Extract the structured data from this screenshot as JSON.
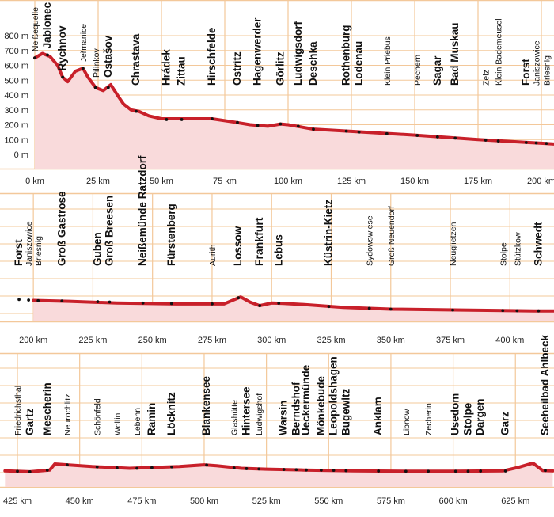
{
  "chart_data": {
    "type": "area",
    "title": "",
    "xlabel": "",
    "ylabel": "",
    "x_unit": "km",
    "y_unit": "m",
    "ylim": [
      0,
      800
    ],
    "grid": true,
    "colors": {
      "line": "#c8202a",
      "fill": "#f9dadb",
      "grid": "#f3c89a",
      "text": "#111111"
    },
    "y_ticks": [
      "0 m",
      "100 m",
      "200 m",
      "300 m",
      "400 m",
      "500 m",
      "600 m",
      "700 m",
      "800 m"
    ],
    "panels": [
      {
        "x_range": [
          0,
          205
        ],
        "x_ticks": [
          "0 km",
          "25 km",
          "50 km",
          "75 km",
          "100 km",
          "125 km",
          "150 km",
          "175 km",
          "200 km"
        ],
        "show_y_axis": true,
        "profile": [
          [
            0,
            650
          ],
          [
            3,
            680
          ],
          [
            6,
            660
          ],
          [
            9,
            600
          ],
          [
            11,
            520
          ],
          [
            13,
            490
          ],
          [
            16,
            560
          ],
          [
            19,
            580
          ],
          [
            21,
            520
          ],
          [
            24,
            450
          ],
          [
            27,
            430
          ],
          [
            30,
            470
          ],
          [
            33,
            390
          ],
          [
            35,
            340
          ],
          [
            38,
            300
          ],
          [
            41,
            290
          ],
          [
            45,
            260
          ],
          [
            50,
            240
          ],
          [
            60,
            240
          ],
          [
            70,
            240
          ],
          [
            78,
            220
          ],
          [
            85,
            200
          ],
          [
            92,
            190
          ],
          [
            97,
            205
          ],
          [
            100,
            200
          ],
          [
            110,
            170
          ],
          [
            125,
            155
          ],
          [
            150,
            130
          ],
          [
            175,
            100
          ],
          [
            200,
            75
          ],
          [
            205,
            70
          ]
        ]
      },
      {
        "x_range": [
          200,
          420
        ],
        "x_ticks": [
          "200 km",
          "225 km",
          "250 km",
          "275 km",
          "300 km",
          "325 km",
          "350 km",
          "375 km",
          "400 km"
        ],
        "show_y_axis": false,
        "profile": [
          [
            200,
            75
          ],
          [
            215,
            70
          ],
          [
            235,
            60
          ],
          [
            260,
            55
          ],
          [
            280,
            55
          ],
          [
            287,
            95
          ],
          [
            291,
            65
          ],
          [
            295,
            45
          ],
          [
            300,
            60
          ],
          [
            305,
            58
          ],
          [
            315,
            50
          ],
          [
            330,
            35
          ],
          [
            350,
            25
          ],
          [
            380,
            20
          ],
          [
            410,
            15
          ],
          [
            420,
            15
          ]
        ]
      },
      {
        "x_range": [
          420,
          640
        ],
        "x_ticks": [
          "425 km",
          "450 km",
          "475 km",
          "500 km",
          "525 km",
          "550 km",
          "575 km",
          "600 km",
          "625 km"
        ],
        "show_y_axis": false,
        "profile": [
          [
            420,
            10
          ],
          [
            430,
            5
          ],
          [
            438,
            15
          ],
          [
            440,
            50
          ],
          [
            445,
            45
          ],
          [
            455,
            35
          ],
          [
            470,
            25
          ],
          [
            480,
            30
          ],
          [
            490,
            35
          ],
          [
            500,
            45
          ],
          [
            505,
            40
          ],
          [
            515,
            25
          ],
          [
            525,
            20
          ],
          [
            540,
            15
          ],
          [
            560,
            10
          ],
          [
            580,
            8
          ],
          [
            600,
            8
          ],
          [
            620,
            10
          ],
          [
            626,
            30
          ],
          [
            632,
            55
          ],
          [
            636,
            12
          ],
          [
            640,
            10
          ]
        ]
      }
    ],
    "places": [
      {
        "name": "Neißequelle",
        "km": 0,
        "alt": 650,
        "style": "small",
        "panel": 0
      },
      {
        "name": "Jablonec",
        "km": 5,
        "alt": 670,
        "style": "bold",
        "panel": 0
      },
      {
        "name": "Rychnov",
        "km": 11,
        "alt": 520,
        "style": "bold",
        "panel": 0
      },
      {
        "name": "Jeřmanice",
        "km": 19,
        "alt": 580,
        "style": "small",
        "panel": 0
      },
      {
        "name": "Pilínkov",
        "km": 24,
        "alt": 450,
        "style": "small",
        "panel": 0
      },
      {
        "name": "Ostašov",
        "km": 29,
        "alt": 450,
        "style": "bold",
        "panel": 0
      },
      {
        "name": "Chrastava",
        "km": 40,
        "alt": 290,
        "style": "bold",
        "panel": 0
      },
      {
        "name": "Hrádek",
        "km": 52,
        "alt": 235,
        "style": "bold",
        "panel": 0
      },
      {
        "name": "Zittau",
        "km": 58,
        "alt": 235,
        "style": "bold",
        "panel": 0
      },
      {
        "name": "Hirschfelde",
        "km": 70,
        "alt": 240,
        "style": "bold",
        "panel": 0
      },
      {
        "name": "Ostritz",
        "km": 80,
        "alt": 215,
        "style": "bold",
        "panel": 0
      },
      {
        "name": "Hagenwerder",
        "km": 88,
        "alt": 195,
        "style": "bold",
        "panel": 0
      },
      {
        "name": "Görlitz",
        "km": 97,
        "alt": 205,
        "style": "bold",
        "panel": 0
      },
      {
        "name": "Ludwigsdorf",
        "km": 104,
        "alt": 190,
        "style": "bold",
        "panel": 0
      },
      {
        "name": "Deschka",
        "km": 110,
        "alt": 170,
        "style": "bold",
        "panel": 0
      },
      {
        "name": "Rothenburg",
        "km": 123,
        "alt": 157,
        "style": "bold",
        "panel": 0
      },
      {
        "name": "Lodenau",
        "km": 128,
        "alt": 150,
        "style": "bold",
        "panel": 0
      },
      {
        "name": "Klein Priebus",
        "km": 139,
        "alt": 140,
        "style": "small",
        "panel": 0
      },
      {
        "name": "Pechern",
        "km": 151,
        "alt": 128,
        "style": "small",
        "panel": 0
      },
      {
        "name": "Sagar",
        "km": 159,
        "alt": 118,
        "style": "bold",
        "panel": 0
      },
      {
        "name": "Bad Muskau",
        "km": 166,
        "alt": 110,
        "style": "bold",
        "panel": 0
      },
      {
        "name": "Zelz",
        "km": 178,
        "alt": 96,
        "style": "small",
        "panel": 0
      },
      {
        "name": "Klein Bademeusel",
        "km": 183,
        "alt": 90,
        "style": "small",
        "panel": 0
      },
      {
        "name": "Forst",
        "km": 194,
        "alt": 80,
        "style": "bold",
        "panel": 0
      },
      {
        "name": "Janiszowice",
        "km": 198,
        "alt": 77,
        "style": "small",
        "panel": 0
      },
      {
        "name": "Briesnig",
        "km": 202,
        "alt": 74,
        "style": "small",
        "panel": 0
      },
      {
        "name": "Forst",
        "km": 194,
        "alt": 80,
        "style": "bold",
        "panel": 1
      },
      {
        "name": "Janiszowice",
        "km": 198,
        "alt": 77,
        "style": "small",
        "panel": 1
      },
      {
        "name": "Briesnig",
        "km": 202,
        "alt": 74,
        "style": "small",
        "panel": 1
      },
      {
        "name": "Groß Gastrose",
        "km": 212,
        "alt": 72,
        "style": "bold",
        "panel": 1
      },
      {
        "name": "Guben",
        "km": 227,
        "alt": 68,
        "style": "bold",
        "panel": 1
      },
      {
        "name": "Groß Breesen",
        "km": 232,
        "alt": 66,
        "style": "bold",
        "panel": 1
      },
      {
        "name": "Neißemünde Ratzdorf",
        "km": 246,
        "alt": 60,
        "style": "bold",
        "panel": 1
      },
      {
        "name": "Fürstenberg",
        "km": 258,
        "alt": 57,
        "style": "bold",
        "panel": 1
      },
      {
        "name": "Aurith",
        "km": 275,
        "alt": 55,
        "style": "small",
        "panel": 1
      },
      {
        "name": "Lossow",
        "km": 286,
        "alt": 90,
        "style": "bold",
        "panel": 1
      },
      {
        "name": "Frankfurt",
        "km": 295,
        "alt": 45,
        "style": "bolder",
        "panel": 1
      },
      {
        "name": "Lebus",
        "km": 303,
        "alt": 59,
        "style": "bold",
        "panel": 1
      },
      {
        "name": "Küstrin-Kietz",
        "km": 324,
        "alt": 40,
        "style": "bold",
        "panel": 1
      },
      {
        "name": "Sydowswiese",
        "km": 341,
        "alt": 30,
        "style": "small",
        "panel": 1
      },
      {
        "name": "Groß Neuendorf",
        "km": 350,
        "alt": 25,
        "style": "small",
        "panel": 1
      },
      {
        "name": "Neuglietzen",
        "km": 376,
        "alt": 20,
        "style": "small",
        "panel": 1
      },
      {
        "name": "Stolpe",
        "km": 397,
        "alt": 17,
        "style": "small",
        "panel": 1
      },
      {
        "name": "Stützkow",
        "km": 403,
        "alt": 16,
        "style": "small",
        "panel": 1
      },
      {
        "name": "Schwedt",
        "km": 412,
        "alt": 15,
        "style": "bold",
        "panel": 1
      },
      {
        "name": "Friedrichsthal",
        "km": 425,
        "alt": 8,
        "style": "small",
        "panel": 2
      },
      {
        "name": "Gartz",
        "km": 430,
        "alt": 5,
        "style": "bold",
        "panel": 2
      },
      {
        "name": "Mescherin",
        "km": 437,
        "alt": 14,
        "style": "bold",
        "panel": 2
      },
      {
        "name": "Neurochlitz",
        "km": 445,
        "alt": 45,
        "style": "small",
        "panel": 2
      },
      {
        "name": "Schönfeld",
        "km": 457,
        "alt": 33,
        "style": "small",
        "panel": 2
      },
      {
        "name": "Wollin",
        "km": 465,
        "alt": 28,
        "style": "small",
        "panel": 2
      },
      {
        "name": "Lebehn",
        "km": 473,
        "alt": 25,
        "style": "small",
        "panel": 2
      },
      {
        "name": "Ramin",
        "km": 479,
        "alt": 29,
        "style": "bold",
        "panel": 2
      },
      {
        "name": "Löcknitz",
        "km": 487,
        "alt": 33,
        "style": "bold",
        "panel": 2
      },
      {
        "name": "Blankensee",
        "km": 501,
        "alt": 44,
        "style": "bold",
        "panel": 2
      },
      {
        "name": "Glashütte",
        "km": 512,
        "alt": 27,
        "style": "small",
        "panel": 2
      },
      {
        "name": "Hintersee",
        "km": 517,
        "alt": 23,
        "style": "bold",
        "panel": 2
      },
      {
        "name": "Ludwigshof",
        "km": 522,
        "alt": 21,
        "style": "small",
        "panel": 2
      },
      {
        "name": "Warsin",
        "km": 532,
        "alt": 18,
        "style": "bold",
        "panel": 2
      },
      {
        "name": "Berndshof",
        "km": 537,
        "alt": 17,
        "style": "bold",
        "panel": 2
      },
      {
        "name": "Ueckermünde",
        "km": 541,
        "alt": 15,
        "style": "bold",
        "panel": 2
      },
      {
        "name": "Mönkebude",
        "km": 547,
        "alt": 14,
        "style": "bold",
        "panel": 2
      },
      {
        "name": "Leopoldshagen",
        "km": 552,
        "alt": 13,
        "style": "bold",
        "panel": 2
      },
      {
        "name": "Bugewitz",
        "km": 557,
        "alt": 11,
        "style": "bold",
        "panel": 2
      },
      {
        "name": "Anklam",
        "km": 570,
        "alt": 9,
        "style": "bold",
        "panel": 2
      },
      {
        "name": "Libnow",
        "km": 581,
        "alt": 8,
        "style": "small",
        "panel": 2
      },
      {
        "name": "Zecherin",
        "km": 590,
        "alt": 8,
        "style": "small",
        "panel": 2
      },
      {
        "name": "Usedom",
        "km": 601,
        "alt": 8,
        "style": "bold",
        "panel": 2
      },
      {
        "name": "Stolpe",
        "km": 606,
        "alt": 8,
        "style": "bold",
        "panel": 2
      },
      {
        "name": "Dargen",
        "km": 611,
        "alt": 9,
        "style": "bold",
        "panel": 2
      },
      {
        "name": "Garz",
        "km": 621,
        "alt": 9,
        "style": "bold",
        "panel": 2
      },
      {
        "name": "Seeheilbad Ahlbeck",
        "km": 637,
        "alt": 12,
        "style": "bold",
        "panel": 2
      }
    ]
  }
}
